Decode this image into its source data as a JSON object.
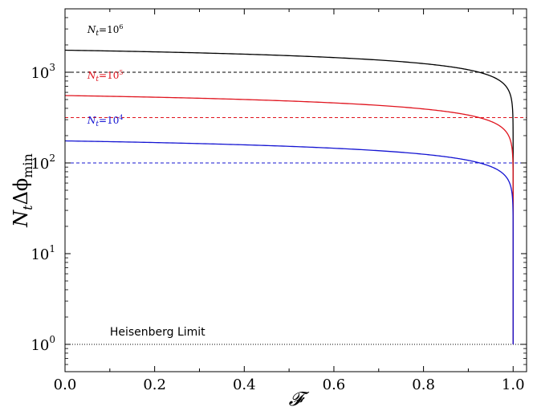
{
  "chart_data": {
    "type": "line",
    "xlabel": "𝓕",
    "ylabel": {
      "main": "N",
      "sub": "t",
      "mid": "Δϕ",
      "sub2": "min"
    },
    "xlim": [
      0.0,
      1.03
    ],
    "ylim": [
      0.5,
      5000
    ],
    "yscale": "log",
    "grid": false,
    "x_ticks": [
      {
        "value": 0.0,
        "label": "0.0"
      },
      {
        "value": 0.2,
        "label": "0.2"
      },
      {
        "value": 0.4,
        "label": "0.4"
      },
      {
        "value": 0.6,
        "label": "0.6"
      },
      {
        "value": 0.8,
        "label": "0.8"
      },
      {
        "value": 1.0,
        "label": "1.0"
      }
    ],
    "y_ticks": [
      {
        "value": 1,
        "base": "10",
        "exp": "0"
      },
      {
        "value": 10,
        "base": "10",
        "exp": "1"
      },
      {
        "value": 100,
        "base": "10",
        "exp": "2"
      },
      {
        "value": 1000,
        "base": "10",
        "exp": "3"
      }
    ],
    "series": [
      {
        "Nt": 1000000,
        "color": "#000000",
        "label_main": "N",
        "label_sub": "t",
        "label_rest": "=10",
        "label_exp": "6",
        "label_x": 0.05,
        "label_y": 2700
      },
      {
        "Nt": 100000,
        "color": "#e0141e",
        "label_main": "N",
        "label_sub": "t",
        "label_rest": "=10",
        "label_exp": "5",
        "label_x": 0.05,
        "label_y": 850
      },
      {
        "Nt": 10000,
        "color": "#1414d2",
        "label_main": "N",
        "label_sub": "t",
        "label_rest": "=10",
        "label_exp": "4",
        "label_x": 0.05,
        "label_y": 270
      }
    ],
    "reference_lines": [
      {
        "y": 1000,
        "color": "#000000",
        "style": "dashed"
      },
      {
        "y": 316,
        "color": "#e0141e",
        "style": "dashed"
      },
      {
        "y": 100,
        "color": "#1414d2",
        "style": "dashed"
      },
      {
        "y": 1,
        "color": "#000000",
        "style": "dotted"
      }
    ],
    "annotation": {
      "text": "Heisenberg Limit",
      "x": 0.1,
      "y": 1.2
    }
  }
}
